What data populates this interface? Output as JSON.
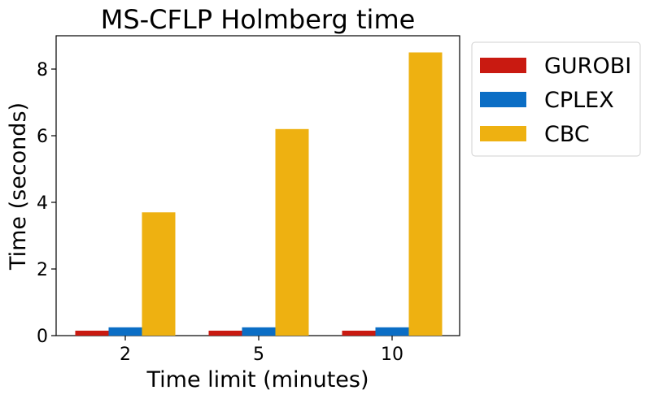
{
  "chart_data": {
    "type": "bar",
    "title": "MS-CFLP Holmberg time",
    "xlabel": "Time limit (minutes)",
    "ylabel": "Time (seconds)",
    "categories": [
      "2",
      "5",
      "10"
    ],
    "ylim": [
      0,
      9
    ],
    "yticks": [
      0,
      2,
      4,
      6,
      8
    ],
    "grid": false,
    "legend_position": "outside-right-top",
    "series": [
      {
        "name": "GUROBI",
        "color": "#c91a11",
        "values": [
          0.15,
          0.15,
          0.15
        ]
      },
      {
        "name": "CPLEX",
        "color": "#0b6ec5",
        "values": [
          0.25,
          0.25,
          0.25
        ]
      },
      {
        "name": "CBC",
        "color": "#eeb111",
        "values": [
          3.7,
          6.2,
          8.5
        ]
      }
    ]
  }
}
